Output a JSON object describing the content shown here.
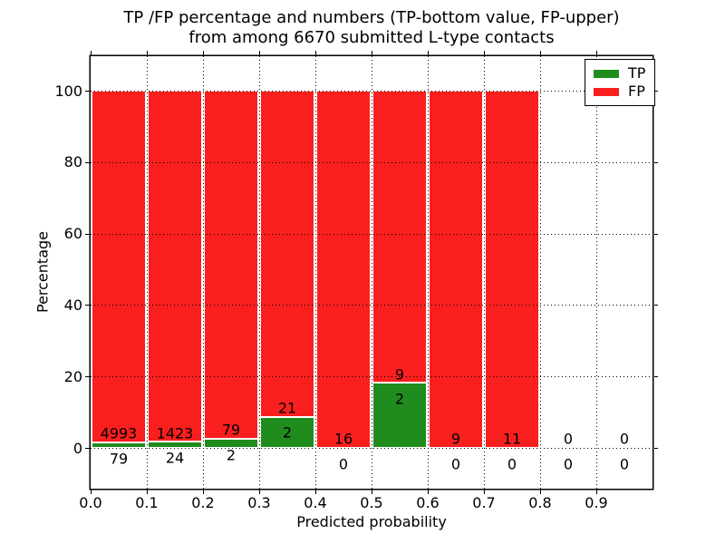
{
  "chart_data": {
    "type": "bar",
    "stacked": true,
    "title_line1": "TP /FP percentage and numbers (TP-bottom value, FP-upper)",
    "title_line2": "from among 6670 submitted L-type contacts",
    "xlabel": "Predicted probability",
    "ylabel": "Percentage",
    "x_tick_labels": [
      "0.0",
      "0.1",
      "0.2",
      "0.3",
      "0.4",
      "0.5",
      "0.6",
      "0.7",
      "0.8",
      "0.9"
    ],
    "y_tick_labels": [
      "0",
      "20",
      "40",
      "60",
      "80",
      "100"
    ],
    "y_tick_values": [
      0,
      20,
      40,
      60,
      80,
      100
    ],
    "xlim": [
      0.0,
      1.0
    ],
    "ylim": [
      -11.4,
      109.6
    ],
    "grid": "dotted",
    "bar_width": 0.1,
    "total_contacts": 6670,
    "colors": {
      "tp": "#208c1e",
      "fp": "#fa1f1f"
    },
    "legend": {
      "position": "upper right",
      "items": [
        {
          "label": "TP",
          "color": "#208c1e"
        },
        {
          "label": "FP",
          "color": "#fa1f1f"
        }
      ]
    },
    "bins": [
      {
        "x_start": 0.0,
        "x_end": 0.1,
        "tp": 79,
        "fp": 4993
      },
      {
        "x_start": 0.1,
        "x_end": 0.2,
        "tp": 24,
        "fp": 1423
      },
      {
        "x_start": 0.2,
        "x_end": 0.3,
        "tp": 2,
        "fp": 79
      },
      {
        "x_start": 0.3,
        "x_end": 0.4,
        "tp": 2,
        "fp": 21
      },
      {
        "x_start": 0.4,
        "x_end": 0.5,
        "tp": 0,
        "fp": 16
      },
      {
        "x_start": 0.5,
        "x_end": 0.6,
        "tp": 2,
        "fp": 9
      },
      {
        "x_start": 0.6,
        "x_end": 0.7,
        "tp": 0,
        "fp": 9
      },
      {
        "x_start": 0.7,
        "x_end": 0.8,
        "tp": 0,
        "fp": 11
      },
      {
        "x_start": 0.8,
        "x_end": 0.9,
        "tp": 0,
        "fp": 0
      },
      {
        "x_start": 0.9,
        "x_end": 1.0,
        "tp": 0,
        "fp": 0
      }
    ]
  }
}
